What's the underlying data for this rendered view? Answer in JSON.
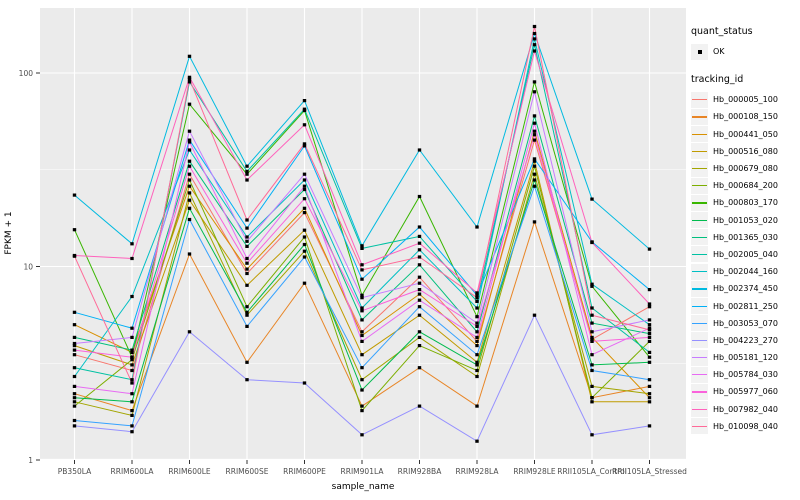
{
  "figure": {
    "panel_background": "#EBEBEB",
    "grid_color": "#FFFFFF",
    "point_color": "#000000",
    "axis_text_color": "#4D4D4D",
    "tick_color": "#333333"
  },
  "axes": {
    "x_title": "sample_name",
    "y_title": "FPKM + 1"
  },
  "legend": {
    "quant_title": "quant_status",
    "quant_item_label": "OK",
    "tracking_title": "tracking_id"
  },
  "chart_data": {
    "type": "line",
    "title": "",
    "xlabel": "sample_name",
    "ylabel": "FPKM + 1",
    "y_scale": "log10",
    "ylim": [
      1,
      216
    ],
    "grid": true,
    "legend_position": "right",
    "y_major_ticks": [
      1,
      10,
      100
    ],
    "y_major_labels": [
      "1",
      "10",
      "100"
    ],
    "y_minor_ticks": [
      3.162,
      31.623
    ],
    "categories": [
      "PB350LA",
      "RRIM600LA",
      "RRIM600LE",
      "RRIM600SE",
      "RRIM600PE",
      "RRIM901LA",
      "RRIM928BA",
      "RRIM928LA",
      "RRIM928LE",
      "RRII105LA_Control",
      "RRII105LA_Stressed"
    ],
    "marker": "square",
    "quant_status_values": [
      "OK"
    ],
    "series": [
      {
        "name": "Hb_000005_100",
        "color": "#F8766D",
        "values": [
          3.5,
          2.9,
          30,
          9.2,
          19,
          4.6,
          8.8,
          4.1,
          45,
          4.2,
          6.2
        ]
      },
      {
        "name": "Hb_000108_150",
        "color": "#E88526",
        "values": [
          2.2,
          1.8,
          11.6,
          3.2,
          8.2,
          1.9,
          3.0,
          1.9,
          17,
          2.1,
          2.4
        ]
      },
      {
        "name": "Hb_000441_050",
        "color": "#D89000",
        "values": [
          5.0,
          3.6,
          26,
          9.7,
          20,
          4.4,
          7.2,
          3.9,
          50,
          4.3,
          2.1
        ]
      },
      {
        "name": "Hb_000516_080",
        "color": "#C09B00",
        "values": [
          3.9,
          3.1,
          22,
          8.0,
          15.4,
          3.5,
          5.6,
          3.2,
          35,
          2.0,
          2.0
        ]
      },
      {
        "name": "Hb_000679_080",
        "color": "#A3A500",
        "values": [
          2.0,
          1.7,
          24,
          5.6,
          12,
          2.6,
          4.3,
          2.7,
          30,
          2.4,
          2.2
        ]
      },
      {
        "name": "Hb_000684_200",
        "color": "#7CAE00",
        "values": [
          1.9,
          3.3,
          28,
          6.2,
          14.2,
          1.8,
          3.9,
          2.9,
          33,
          2.1,
          4.1
        ]
      },
      {
        "name": "Hb_000803_170",
        "color": "#39B600",
        "values": [
          15.5,
          3.4,
          69,
          30,
          64,
          7.1,
          23,
          5.5,
          90,
          7.9,
          3.4
        ]
      },
      {
        "name": "Hb_001053_020",
        "color": "#00BB4E",
        "values": [
          2.1,
          2.0,
          20,
          5.8,
          13,
          2.3,
          4.6,
          3.1,
          28,
          3.1,
          3.2
        ]
      },
      {
        "name": "Hb_001365_030",
        "color": "#00BF7D",
        "values": [
          4.3,
          3.7,
          35,
          12.7,
          25,
          5.3,
          10.2,
          4.6,
          60,
          5.1,
          4.5
        ]
      },
      {
        "name": "Hb_002005_040",
        "color": "#00C1A3",
        "values": [
          3.0,
          2.6,
          90,
          31,
          65,
          12.4,
          14.3,
          6.6,
          140,
          6.1,
          3.6
        ]
      },
      {
        "name": "Hb_002044_160",
        "color": "#00BFC4",
        "values": [
          2.7,
          7.0,
          40,
          14.2,
          28,
          6.1,
          12.2,
          6.1,
          150,
          8.1,
          5.0
        ]
      },
      {
        "name": "Hb_002374_450",
        "color": "#00BAE0",
        "values": [
          23.4,
          13.1,
          122,
          33,
          72,
          12.8,
          40,
          16,
          160,
          22.3,
          12.3
        ]
      },
      {
        "name": "Hb_002811_250",
        "color": "#00B0F6",
        "values": [
          5.8,
          4.8,
          45,
          15.8,
          42,
          8.6,
          16,
          7.1,
          36,
          13.4,
          7.6
        ]
      },
      {
        "name": "Hb_003053_070",
        "color": "#35A2FF",
        "values": [
          1.6,
          1.5,
          17.5,
          4.9,
          11.2,
          3.0,
          6.2,
          3.5,
          26,
          2.9,
          2.6
        ]
      },
      {
        "name": "Hb_004223_270",
        "color": "#9590FF",
        "values": [
          1.5,
          1.4,
          4.6,
          2.6,
          2.5,
          1.35,
          1.9,
          1.25,
          5.6,
          1.35,
          1.5
        ]
      },
      {
        "name": "Hb_005181_120",
        "color": "#C77CFF",
        "values": [
          4.0,
          4.3,
          50,
          13.5,
          30,
          6.9,
          8.2,
          5.1,
          80,
          4.6,
          5.3
        ]
      },
      {
        "name": "Hb_005784_030",
        "color": "#E76BF3",
        "values": [
          2.4,
          2.2,
          44,
          11.0,
          26,
          4.1,
          6.7,
          4.3,
          55,
          3.5,
          4.8
        ]
      },
      {
        "name": "Hb_005977_060",
        "color": "#FA62DB",
        "values": [
          3.7,
          3.4,
          33,
          10.4,
          22.4,
          5.9,
          7.6,
          4.9,
          48,
          4.1,
          4.3
        ]
      },
      {
        "name": "Hb_007982_040",
        "color": "#FF62BC",
        "values": [
          11.4,
          11.0,
          95,
          28,
          54,
          10.2,
          13.2,
          7.3,
          130,
          13.3,
          6.4
        ]
      },
      {
        "name": "Hb_010098_040",
        "color": "#FF6A98",
        "values": [
          11.3,
          2.5,
          93,
          17.4,
          43,
          9.6,
          11.2,
          6.9,
          174,
          5.6,
          4.7
        ]
      }
    ]
  }
}
